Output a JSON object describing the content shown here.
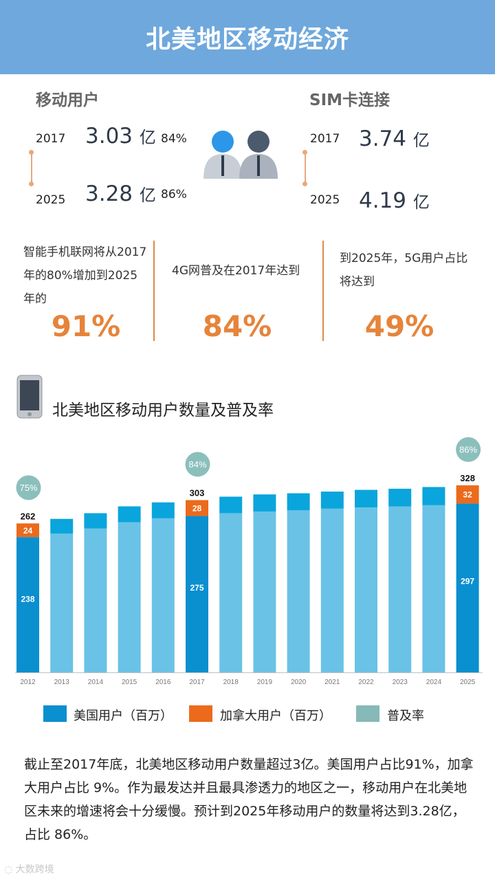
{
  "title": "北美地区移动经济",
  "mobile_users": {
    "label": "移动用户",
    "year1": "2017",
    "value1": "3.03",
    "unit1": "亿",
    "pct1": "84%",
    "year2": "2025",
    "value2": "3.28",
    "unit2": "亿",
    "pct2": "86%"
  },
  "sim": {
    "label": "SIM卡连接",
    "year1": "2017",
    "value1": "3.74",
    "unit1": "亿",
    "year2": "2025",
    "value2": "4.19",
    "unit2": "亿"
  },
  "stats": [
    {
      "text": "智能手机联网将从2017年的80%增加到2025年的",
      "value": "91%"
    },
    {
      "text": "4G网普及在2017年达到",
      "value": "84%"
    },
    {
      "text": "到2025年，5G用户占比将达到",
      "value": "49%"
    }
  ],
  "chart_title": "北美地区移动用户数量及普及率",
  "chart_data": {
    "type": "bar",
    "stacked": true,
    "categories": [
      "2012",
      "2013",
      "2014",
      "2015",
      "2016",
      "2017",
      "2018",
      "2019",
      "2020",
      "2021",
      "2022",
      "2023",
      "2024",
      "2025"
    ],
    "series": [
      {
        "name": "美国用户（百万）",
        "values": [
          238,
          244,
          253,
          264,
          271,
          275,
          280,
          283,
          285,
          288,
          290,
          292,
          294,
          297
        ]
      },
      {
        "name": "加拿大用户（百万）",
        "values": [
          24,
          26,
          27,
          28,
          28,
          28,
          29,
          30,
          30,
          30,
          31,
          31,
          32,
          32
        ]
      }
    ],
    "totals": [
      262,
      270,
      280,
      292,
      299,
      303,
      309,
      313,
      315,
      318,
      321,
      323,
      326,
      328
    ],
    "total_labels": {
      "2012": "262",
      "2017": "303",
      "2025": "328"
    },
    "value_labels": {
      "2012": {
        "us": "238",
        "ca": "24"
      },
      "2017": {
        "us": "275",
        "ca": "28"
      },
      "2025": {
        "us": "297",
        "ca": "32"
      }
    },
    "penetration": {
      "2012": "75%",
      "2017": "84%",
      "2025": "86%"
    },
    "ylim": [
      0,
      370
    ],
    "colors": {
      "us_highlight": "#0a8fcf",
      "ca_highlight": "#ec6a1c",
      "us": "#6ac2e6",
      "ca": "#0aa5dc",
      "penetration": "#8bbfbc"
    }
  },
  "legend": [
    {
      "label": "美国用户（百万）",
      "color": "#0a8fcf"
    },
    {
      "label": "加拿大用户（百万）",
      "color": "#ec6a1c"
    },
    {
      "label": "普及率",
      "color": "#86b9b8"
    }
  ],
  "paragraph": "截止至2017年底，北美地区移动用户数量超过3亿。美国用户占比91%，加拿大用户占比 9%。作为最发达并且最具渗透力的地区之一，移动用户在北美地区未来的增速将会十分缓慢。预计到2025年移动用户的数量将达到3.28亿，占比 86%。",
  "watermark": "大数跨境"
}
